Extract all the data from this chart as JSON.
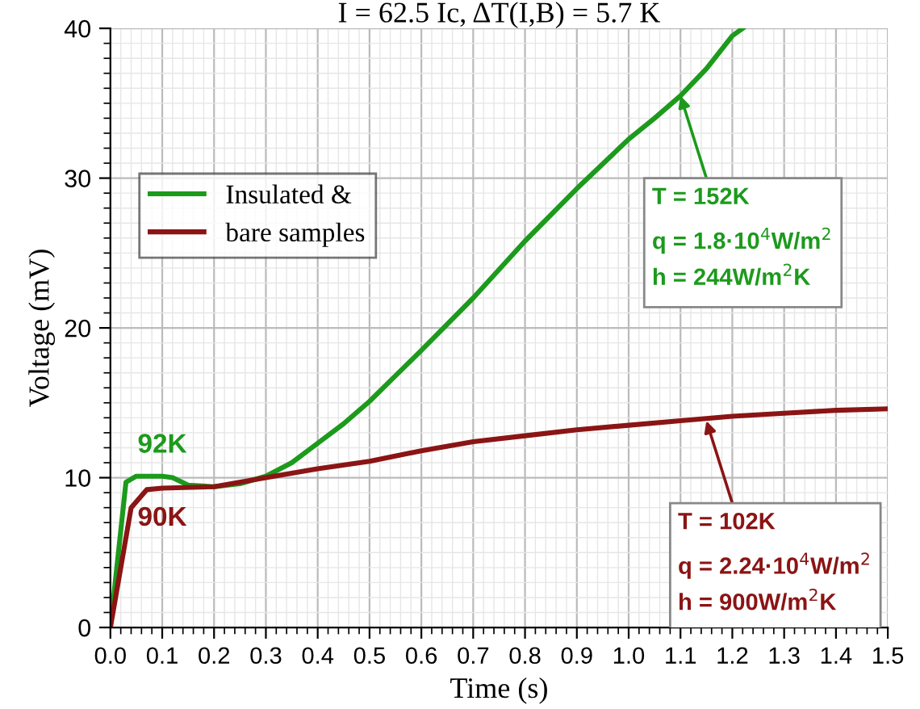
{
  "chart_data": {
    "type": "line",
    "title": "I = 62.5 Ic, ΔT(I,B) = 5.7 K",
    "xlabel": "Time (s)",
    "ylabel": "Voltage (mV)",
    "xlim": [
      0,
      1.5
    ],
    "ylim": [
      0,
      40
    ],
    "xticks": [
      {
        "value": 0,
        "label": "0.0"
      },
      0.1,
      0.2,
      0.3,
      0.4,
      0.5,
      0.6,
      0.7,
      0.8,
      0.9,
      {
        "value": 1,
        "label": "1.0"
      },
      1.1,
      1.2,
      1.3,
      1.4,
      1.5
    ],
    "yticks": [
      0,
      10,
      20,
      30,
      40
    ],
    "grid": true,
    "legend": "top left",
    "marker": "none",
    "line_style": "solid",
    "series": [
      {
        "name": "Insulated &",
        "color": "#1c9a1c",
        "x": [
          0,
          0.03,
          0.05,
          0.1,
          0.12,
          0.15,
          0.2,
          0.25,
          0.3,
          0.35,
          0.4,
          0.45,
          0.5,
          0.55,
          0.6,
          0.7,
          0.8,
          0.9,
          1.0,
          1.05,
          1.1,
          1.15,
          1.2,
          1.22
        ],
        "values": [
          0,
          9.7,
          10.1,
          10.1,
          10.0,
          9.5,
          9.4,
          9.6,
          10.1,
          11,
          12.3,
          13.6,
          15.1,
          16.8,
          18.5,
          22,
          25.8,
          29.3,
          32.6,
          34,
          35.5,
          37.3,
          39.5,
          40
        ]
      },
      {
        "name": "bare samples",
        "color": "#8b1414",
        "x": [
          0,
          0.04,
          0.07,
          0.1,
          0.2,
          0.3,
          0.4,
          0.5,
          0.6,
          0.7,
          0.8,
          0.9,
          1.0,
          1.1,
          1.2,
          1.3,
          1.4,
          1.5
        ],
        "values": [
          0,
          8,
          9.2,
          9.3,
          9.4,
          10,
          10.6,
          11.1,
          11.8,
          12.4,
          12.8,
          13.2,
          13.5,
          13.8,
          14.1,
          14.3,
          14.5,
          14.6
        ]
      }
    ],
    "annotations": [
      {
        "text": "T = 152K",
        "x": 1.1,
        "y": 35.5
      },
      "q = 1.8·10$^{4}$W/m$^{2}$",
      "h = 244W/m$^{2}$K",
      {
        "text": "T = 102K",
        "x": 1.15,
        "y": 13.8
      },
      "q = 2.24·10$^{4}$W/m$^{2}$",
      "h = 900W/m$^{2}$K",
      {
        "text": "92K",
        "x": 0.1,
        "y": 10.1
      },
      {
        "text": "90K",
        "x": 0.1,
        "y": 9.3
      }
    ]
  }
}
